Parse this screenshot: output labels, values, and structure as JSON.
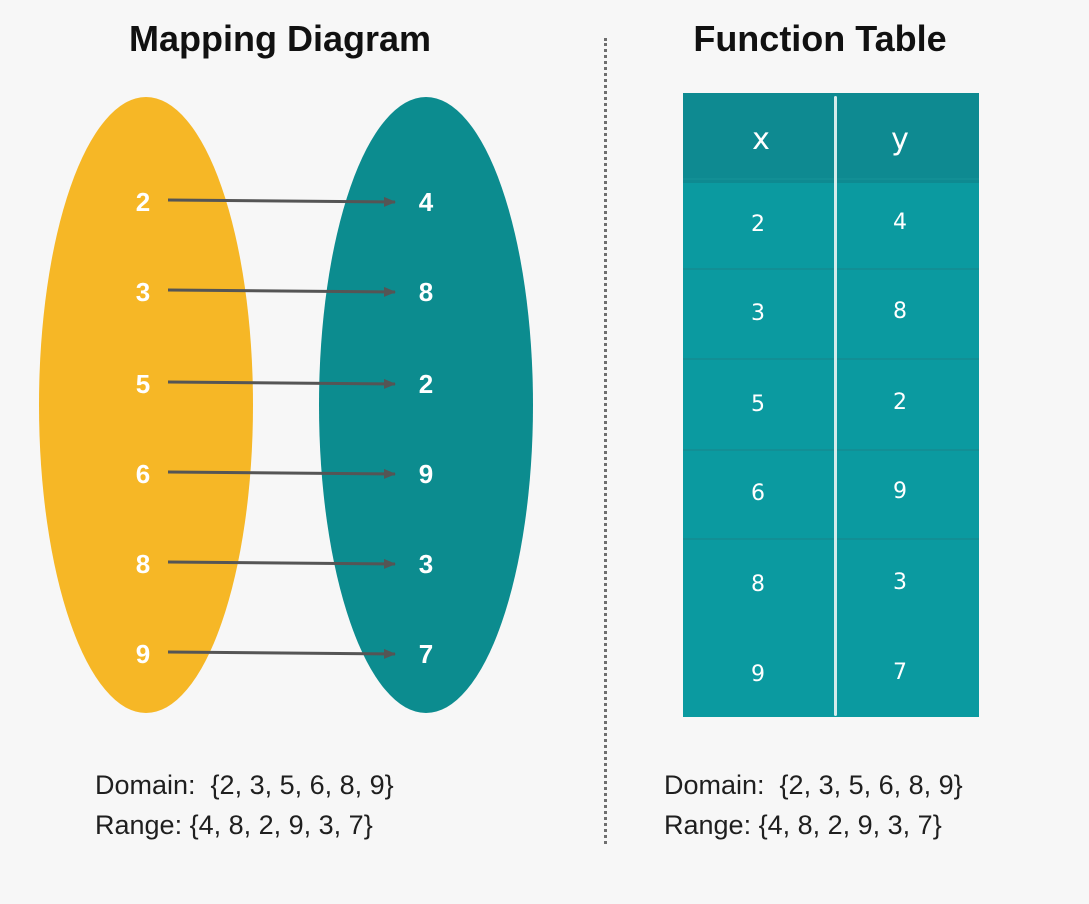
{
  "mapping": {
    "title": "Mapping Diagram",
    "domain_values": [
      "2",
      "3",
      "5",
      "6",
      "8",
      "9"
    ],
    "range_values": [
      "4",
      "8",
      "2",
      "9",
      "3",
      "7"
    ],
    "domain_line": "Domain:  {2, 3, 5, 6, 8, 9}",
    "range_line": "Range: {4, 8, 2, 9, 3, 7}"
  },
  "table": {
    "title": "Function Table",
    "headers": [
      "x",
      "y"
    ],
    "rows": [
      [
        "2",
        "4"
      ],
      [
        "3",
        "8"
      ],
      [
        "5",
        "2"
      ],
      [
        "6",
        "9"
      ],
      [
        "8",
        "3"
      ],
      [
        "9",
        "7"
      ]
    ],
    "domain_line": "Domain:  {2, 3, 5, 6, 8, 9}",
    "range_line": "Range: {4, 8, 2, 9, 3, 7}"
  },
  "colors": {
    "domain_oval": "#f6b726",
    "range_oval": "#0c8c8f",
    "arrow": "#555555",
    "table_body": "#0b9aa0",
    "table_header": "#0e8a91"
  }
}
